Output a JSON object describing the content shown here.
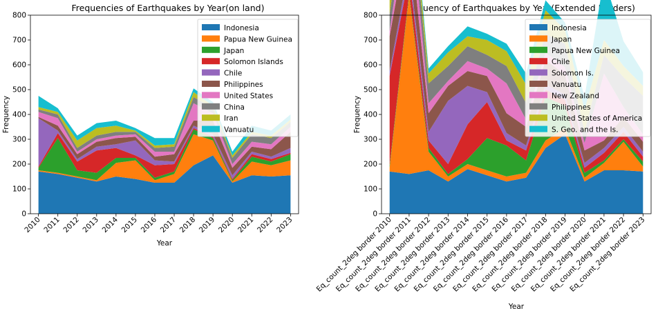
{
  "chart_data": [
    {
      "type": "area",
      "title": "Frequencies of Earthquakes by Year(on land)",
      "xlabel": "Year",
      "ylabel": "Frequency",
      "ylim": [
        0,
        800
      ],
      "yticks": [
        0,
        100,
        200,
        300,
        400,
        500,
        600,
        700,
        800
      ],
      "grid": false,
      "legend_position": "top-right",
      "categories": [
        "2010",
        "2011",
        "2012",
        "2013",
        "2014",
        "2015",
        "2016",
        "2017",
        "2018",
        "2019",
        "2020",
        "2021",
        "2022",
        "2023"
      ],
      "series": [
        {
          "name": "Indonesia",
          "color": "#1f77b4",
          "values": [
            170,
            160,
            145,
            130,
            150,
            140,
            125,
            125,
            195,
            235,
            125,
            155,
            150,
            155
          ]
        },
        {
          "name": "Papua New Guinea",
          "color": "#ff7f0e",
          "values": [
            5,
            5,
            5,
            5,
            55,
            75,
            10,
            35,
            125,
            60,
            5,
            55,
            45,
            60
          ]
        },
        {
          "name": "Japan",
          "color": "#2ca02c",
          "values": [
            10,
            140,
            25,
            30,
            20,
            10,
            10,
            10,
            20,
            10,
            5,
            20,
            15,
            25
          ]
        },
        {
          "name": "Solomon Islands",
          "color": "#d62728",
          "values": [
            5,
            20,
            35,
            90,
            40,
            10,
            50,
            30,
            5,
            5,
            5,
            10,
            10,
            5
          ]
        },
        {
          "name": "Chile",
          "color": "#9467bd",
          "values": [
            195,
            10,
            10,
            15,
            15,
            60,
            20,
            10,
            10,
            10,
            15,
            10,
            10,
            20
          ]
        },
        {
          "name": "Philippines",
          "color": "#8c564b",
          "values": [
            5,
            20,
            20,
            20,
            25,
            15,
            15,
            30,
            20,
            55,
            30,
            20,
            30,
            65
          ]
        },
        {
          "name": "United States",
          "color": "#e377c2",
          "values": [
            20,
            30,
            10,
            10,
            10,
            10,
            20,
            10,
            70,
            30,
            15,
            20,
            20,
            20
          ]
        },
        {
          "name": "China",
          "color": "#7f7f7f",
          "values": [
            10,
            15,
            15,
            15,
            15,
            10,
            15,
            20,
            25,
            20,
            25,
            30,
            25,
            20
          ]
        },
        {
          "name": "Iran",
          "color": "#bcbd22",
          "values": [
            10,
            10,
            30,
            30,
            25,
            5,
            10,
            10,
            20,
            10,
            10,
            10,
            10,
            10
          ]
        },
        {
          "name": "Vanuatu",
          "color": "#17becf",
          "values": [
            45,
            15,
            20,
            20,
            20,
            10,
            30,
            25,
            15,
            15,
            15,
            25,
            20,
            20
          ]
        }
      ]
    },
    {
      "type": "area",
      "title": "Frequency of Earthquakes by Year(Extended Borders)",
      "xlabel": "Year",
      "ylabel": "Frequency",
      "ylim": [
        0,
        800
      ],
      "yticks": [
        0,
        100,
        200,
        300,
        400,
        500,
        600,
        700,
        800
      ],
      "grid": false,
      "legend_position": "top-right",
      "categories": [
        "Eq_count_2deg border 2010",
        "Eq_count_2deg border 2011",
        "Eq_count_2deg border 2012",
        "Eq_count_2deg border 2013",
        "Eq_count_2deg border 2014",
        "Eq_count_2deg border 2015",
        "Eq_count_2deg border 2016",
        "Eq_count_2deg border 2017",
        "Eq_count_2deg border 2018",
        "Eq_count_2deg border 2019",
        "Eq_count_2deg border 2020",
        "Eq_count_2deg border 2021",
        "Eq_count_2deg border 2022",
        "Eq_count_2deg border 2023"
      ],
      "series": [
        {
          "name": "Indonesia",
          "color": "#1f77b4",
          "values": [
            170,
            160,
            175,
            130,
            180,
            155,
            130,
            145,
            265,
            320,
            130,
            175,
            175,
            170
          ]
        },
        {
          "name": "Japan",
          "color": "#ff7f0e",
          "values": [
            15,
            720,
            75,
            20,
            20,
            20,
            20,
            20,
            30,
            25,
            15,
            30,
            115,
            20
          ]
        },
        {
          "name": "Papua New Guinea",
          "color": "#2ca02c",
          "values": [
            10,
            10,
            15,
            10,
            20,
            130,
            125,
            50,
            175,
            90,
            20,
            10,
            10,
            20
          ]
        },
        {
          "name": "Chile",
          "color": "#d62728",
          "values": [
            360,
            70,
            30,
            40,
            140,
            145,
            20,
            40,
            30,
            25,
            20,
            30,
            30,
            20
          ]
        },
        {
          "name": "Solomon Is.",
          "color": "#9467bd",
          "values": [
            20,
            40,
            35,
            255,
            155,
            40,
            30,
            20,
            20,
            20,
            20,
            20,
            20,
            20
          ]
        },
        {
          "name": "Vanuatu",
          "color": "#8c564b",
          "values": [
            140,
            150,
            75,
            60,
            60,
            65,
            80,
            75,
            100,
            80,
            50,
            30,
            40,
            40
          ]
        },
        {
          "name": "New Zealand",
          "color": "#e377c2",
          "values": [
            20,
            125,
            40,
            20,
            40,
            30,
            120,
            30,
            30,
            30,
            30,
            270,
            40,
            30
          ]
        },
        {
          "name": "Philippines",
          "color": "#7f7f7f",
          "values": [
            70,
            80,
            80,
            60,
            60,
            55,
            70,
            65,
            75,
            95,
            45,
            75,
            120,
            155
          ]
        },
        {
          "name": "United States of America",
          "color": "#bcbd22",
          "values": [
            85,
            55,
            40,
            55,
            40,
            60,
            60,
            75,
            95,
            55,
            90,
            60,
            45,
            40
          ]
        },
        {
          "name": "S. Geo. and the Is.",
          "color": "#17becf",
          "values": [
            30,
            25,
            20,
            25,
            40,
            25,
            30,
            45,
            40,
            30,
            50,
            250,
            100,
            55
          ]
        }
      ]
    }
  ]
}
